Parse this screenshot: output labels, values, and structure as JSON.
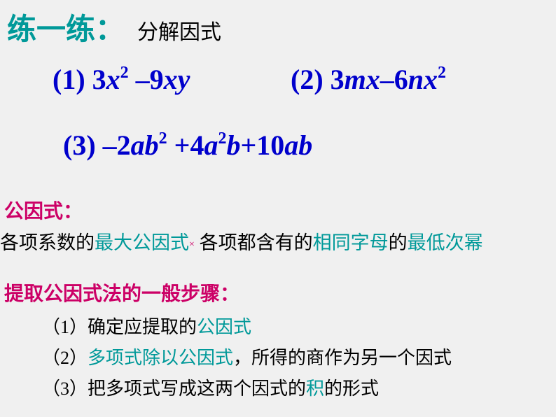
{
  "title": {
    "main": "练一练：",
    "sub": "分解因式"
  },
  "problems": {
    "p1_label": "(1) ",
    "p1_n1": "3",
    "p1_v1": "x",
    "p1_e1": "2",
    "p1_op": " –",
    "p1_n2": "9",
    "p1_v2": "xy",
    "p2_label": "(2) ",
    "p2_n1": "3",
    "p2_v1": "mx",
    "p2_op": "–",
    "p2_n2": "6",
    "p2_v2": "nx",
    "p2_e2": "2",
    "p3_label": "(3)  ",
    "p3_op1": "–",
    "p3_n1": "2",
    "p3_v1": "ab",
    "p3_e1": "2",
    "p3_op2": " +",
    "p3_n2": "4",
    "p3_v2": "a",
    "p3_e2": "2",
    "p3_v3": "b",
    "p3_op3": "+",
    "p3_n3": "10",
    "p3_v4": "ab"
  },
  "gcf": {
    "label": "公因式：",
    "line_a": "各项系数的",
    "line_b": "最大公因式",
    "line_star": "×",
    "line_c": " 各项都含有的",
    "line_d": "相同字母",
    "line_e": "的",
    "line_f": "最低次幂"
  },
  "steps": {
    "label": "提取公因式法的一般步骤：",
    "s1a": "（1）确定应提取的",
    "s1b": "公因式",
    "s2a": "（2）",
    "s2b": "多项式除以公因式",
    "s2c": "，所得的商作为另一个因式",
    "s3a": "（3）把多项式写成这两个因式的",
    "s3b": "积",
    "s3c": "的形式"
  },
  "colors": {
    "teal": "#009999",
    "blue": "#0000cc",
    "magenta": "#cc0066",
    "bg": "#f0f0f0",
    "text": "#000000"
  },
  "fonts": {
    "title_size": 42,
    "math_size": 40,
    "body_size": 27,
    "steps_size": 26
  }
}
